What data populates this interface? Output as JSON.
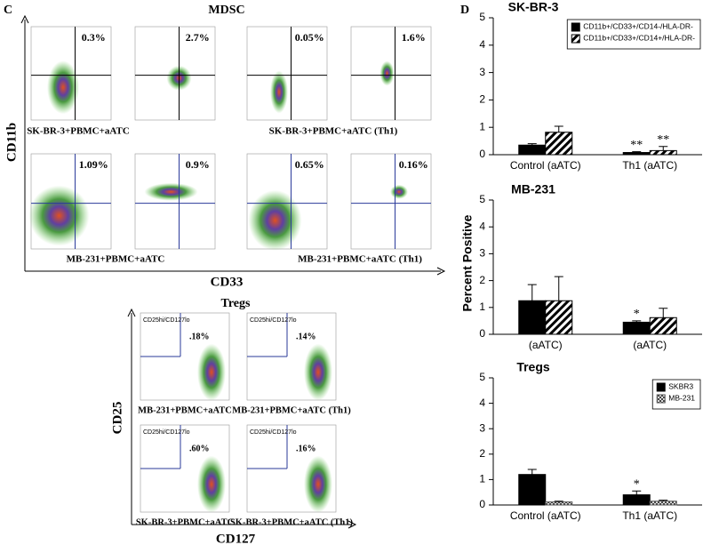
{
  "panel_c": {
    "label": "C",
    "mdsc": {
      "title": "MDSC",
      "y_axis": "CD11b",
      "x_axis": "CD33",
      "plots": [
        {
          "percent": "0.3%"
        },
        {
          "percent": "2.7%"
        },
        {
          "percent": "0.05%"
        },
        {
          "percent": "1.6%"
        },
        {
          "percent": "1.09%"
        },
        {
          "percent": "0.9%"
        },
        {
          "percent": "0.65%"
        },
        {
          "percent": "0.16%"
        }
      ],
      "captions": [
        "SK-BR-3+PBMC+aATC",
        "SK-BR-3+PBMC+aATC (Th1)",
        "MB-231+PBMC+aATC",
        "MB-231+PBMC+aATC (Th1)"
      ]
    },
    "tregs": {
      "title": "Tregs",
      "y_axis": "CD25",
      "x_axis": "CD127",
      "plots": [
        {
          "gate": "CD25hi/CD127lo",
          "percent": ".18%",
          "caption": "MB-231+PBMC+aATC"
        },
        {
          "gate": "CD25hi/CD127lo",
          "percent": ".14%",
          "caption": "MB-231+PBMC+aATC (Th1)"
        },
        {
          "gate": "CD25hi/CD127lo",
          "percent": ".60%",
          "caption": "SK-BR-3+PBMC+aATC"
        },
        {
          "gate": "CD25hi/CD127lo",
          "percent": ".16%",
          "caption": "SK-BR-3+PBMC+aATC (Th1)"
        }
      ]
    }
  },
  "panel_d": {
    "label": "D",
    "y_axis": "Percent Positive"
  },
  "chart_data": [
    {
      "type": "bar",
      "title": "SK-BR-3",
      "categories": [
        "Control  (aATC)",
        "Th1  (aATC)"
      ],
      "series": [
        {
          "name": "CD11b+/CD33+/CD14-/HLA-DR-",
          "color": "#000000",
          "values": [
            0.35,
            0.08
          ],
          "errors": [
            0.05,
            0.03
          ],
          "significance": [
            null,
            "**"
          ]
        },
        {
          "name": "CD11b+/CD33+/CD14+/HLA-DR-",
          "color": "#000000",
          "pattern": "hatch",
          "values": [
            0.82,
            0.15
          ],
          "errors": [
            0.22,
            0.15
          ],
          "significance": [
            null,
            "**"
          ]
        }
      ],
      "ylim": [
        0,
        5
      ],
      "yticks": [
        0,
        1,
        2,
        3,
        4,
        5
      ],
      "legend": "upper right"
    },
    {
      "type": "bar",
      "title": "MB-231",
      "categories": [
        "(aATC)",
        "(aATC)"
      ],
      "series": [
        {
          "color": "#000000",
          "values": [
            1.25,
            0.45
          ],
          "errors": [
            0.6,
            0.05
          ],
          "significance": [
            null,
            "*"
          ]
        },
        {
          "color": "#000000",
          "pattern": "hatch",
          "values": [
            1.25,
            0.62
          ],
          "errors": [
            0.9,
            0.35
          ]
        }
      ],
      "ylim": [
        0,
        5
      ],
      "yticks": [
        0,
        1,
        2,
        3,
        4,
        5
      ]
    },
    {
      "type": "bar",
      "title": "Tregs",
      "categories": [
        "Control  (aATC)",
        "Th1  (aATC)"
      ],
      "series": [
        {
          "name": "SKBR3",
          "color": "#000000",
          "values": [
            1.2,
            0.4
          ],
          "errors": [
            0.2,
            0.15
          ],
          "significance": [
            null,
            "*"
          ]
        },
        {
          "name": "MB-231",
          "color": "#555555",
          "pattern": "check",
          "values": [
            0.12,
            0.15
          ],
          "errors": [
            0.03,
            0.04
          ]
        }
      ],
      "ylim": [
        0,
        5
      ],
      "yticks": [
        0,
        1,
        2,
        3,
        4,
        5
      ],
      "legend": "upper right"
    }
  ]
}
